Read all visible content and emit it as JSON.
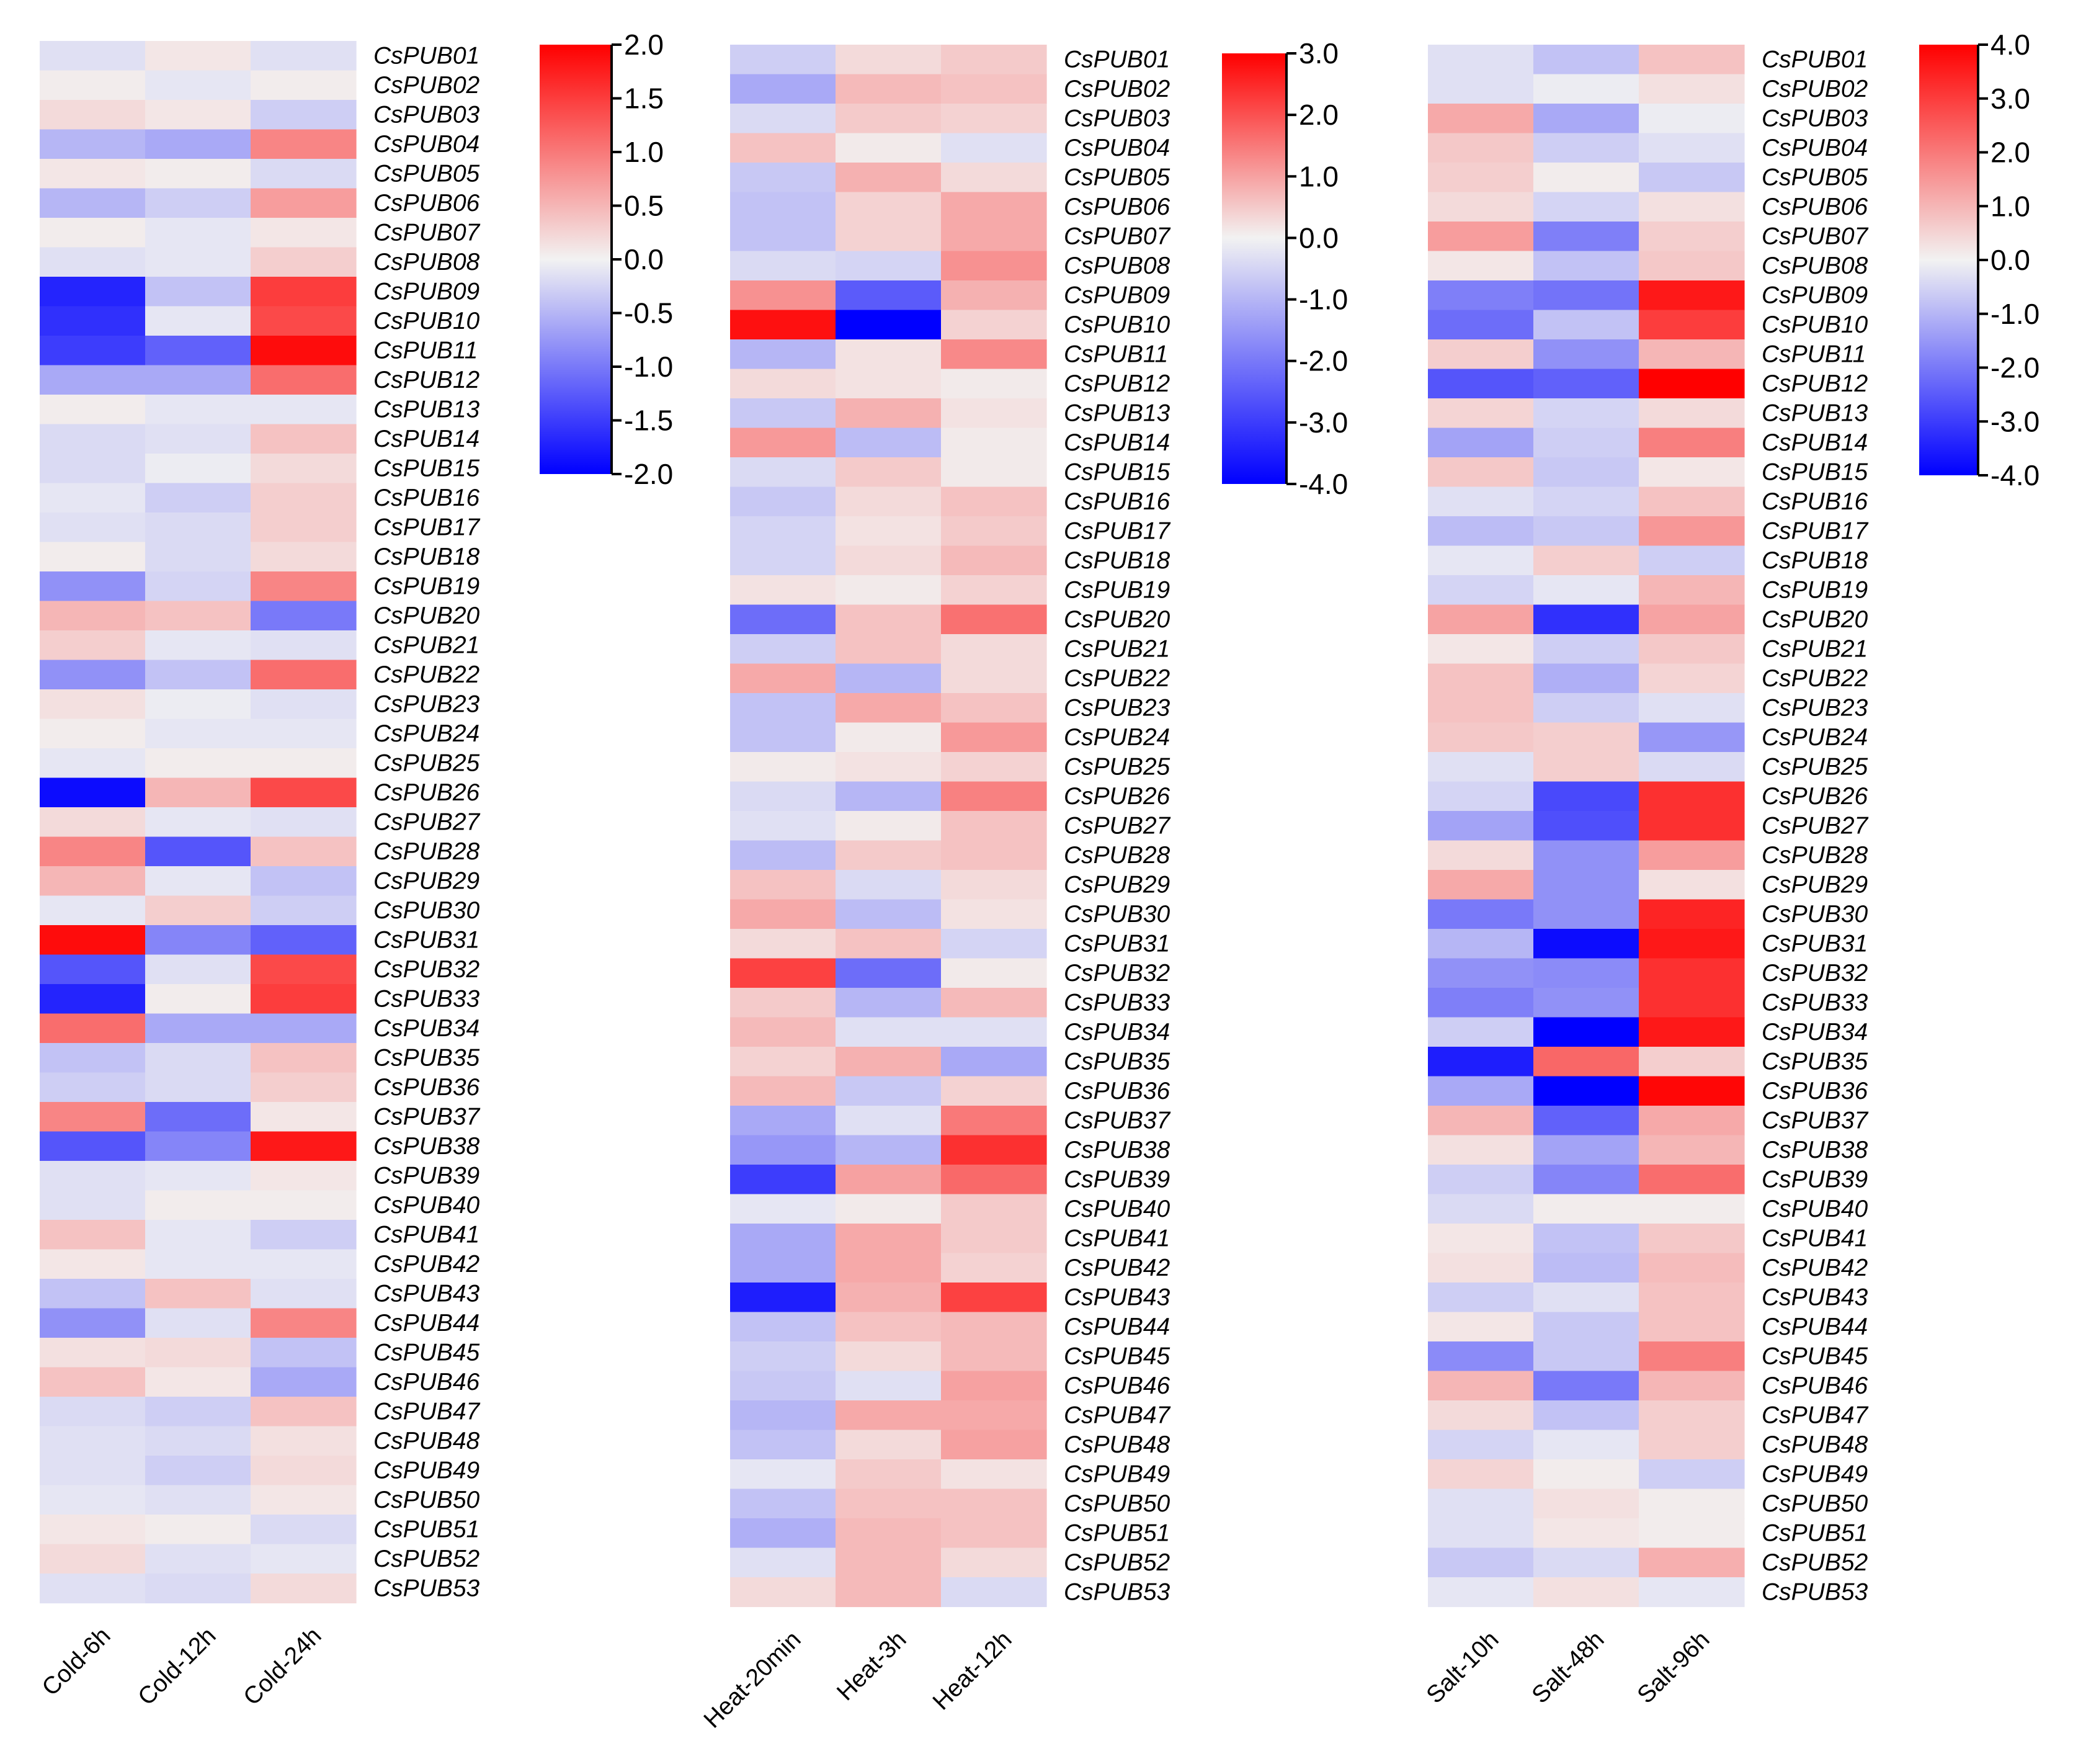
{
  "chart_data": [
    {
      "type": "heatmap",
      "title": "",
      "xlabel": "",
      "ylabel": "",
      "columns": [
        "Cold-6h",
        "Cold-12h",
        "Cold-24h"
      ],
      "rows": [
        "CsPUB01",
        "CsPUB02",
        "CsPUB03",
        "CsPUB04",
        "CsPUB05",
        "CsPUB06",
        "CsPUB07",
        "CsPUB08",
        "CsPUB09",
        "CsPUB10",
        "CsPUB11",
        "CsPUB12",
        "CsPUB13",
        "CsPUB14",
        "CsPUB15",
        "CsPUB16",
        "CsPUB17",
        "CsPUB18",
        "CsPUB19",
        "CsPUB20",
        "CsPUB21",
        "CsPUB22",
        "CsPUB23",
        "CsPUB24",
        "CsPUB25",
        "CsPUB26",
        "CsPUB27",
        "CsPUB28",
        "CsPUB29",
        "CsPUB30",
        "CsPUB31",
        "CsPUB32",
        "CsPUB33",
        "CsPUB34",
        "CsPUB35",
        "CsPUB36",
        "CsPUB37",
        "CsPUB38",
        "CsPUB39",
        "CsPUB40",
        "CsPUB41",
        "CsPUB42",
        "CsPUB43",
        "CsPUB44",
        "CsPUB45",
        "CsPUB46",
        "CsPUB47",
        "CsPUB48",
        "CsPUB49",
        "CsPUB50",
        "CsPUB51",
        "CsPUB52",
        "CsPUB53"
      ],
      "values": [
        [
          -0.15,
          0.1,
          -0.15
        ],
        [
          0.05,
          -0.1,
          0.05
        ],
        [
          0.2,
          0.1,
          -0.3
        ],
        [
          -0.5,
          -0.6,
          0.9
        ],
        [
          0.1,
          0.05,
          -0.2
        ],
        [
          -0.5,
          -0.3,
          0.7
        ],
        [
          0.05,
          -0.1,
          0.1
        ],
        [
          -0.15,
          -0.1,
          0.3
        ],
        [
          -1.7,
          -0.4,
          1.5
        ],
        [
          -1.6,
          -0.1,
          1.4
        ],
        [
          -1.5,
          -1.2,
          1.9
        ],
        [
          -0.6,
          -0.6,
          1.1
        ],
        [
          0.05,
          -0.1,
          -0.1
        ],
        [
          -0.2,
          -0.15,
          0.4
        ],
        [
          -0.2,
          -0.05,
          0.2
        ],
        [
          -0.1,
          -0.3,
          0.3
        ],
        [
          -0.15,
          -0.2,
          0.3
        ],
        [
          0.05,
          -0.2,
          0.2
        ],
        [
          -0.8,
          -0.25,
          0.9
        ],
        [
          0.5,
          0.4,
          -1.0
        ],
        [
          0.3,
          -0.1,
          -0.15
        ],
        [
          -0.8,
          -0.4,
          1.1
        ],
        [
          0.15,
          -0.05,
          -0.15
        ],
        [
          0.05,
          -0.1,
          -0.1
        ],
        [
          -0.1,
          0.05,
          0.05
        ],
        [
          -1.9,
          0.5,
          1.4
        ],
        [
          0.2,
          -0.1,
          -0.15
        ],
        [
          0.9,
          -1.3,
          0.4
        ],
        [
          0.5,
          -0.1,
          -0.4
        ],
        [
          -0.1,
          0.3,
          -0.3
        ],
        [
          1.9,
          -0.9,
          -1.2
        ],
        [
          -1.3,
          -0.15,
          1.4
        ],
        [
          -1.7,
          0.05,
          1.5
        ],
        [
          1.1,
          -0.6,
          -0.6
        ],
        [
          -0.4,
          -0.2,
          0.4
        ],
        [
          -0.3,
          -0.2,
          0.3
        ],
        [
          0.9,
          -1.1,
          0.1
        ],
        [
          -1.3,
          -0.9,
          1.8
        ],
        [
          -0.15,
          -0.1,
          0.1
        ],
        [
          -0.15,
          0.05,
          0.05
        ],
        [
          0.4,
          -0.1,
          -0.3
        ],
        [
          0.1,
          -0.1,
          -0.1
        ],
        [
          -0.4,
          0.4,
          -0.15
        ],
        [
          -0.8,
          -0.15,
          0.9
        ],
        [
          0.15,
          0.2,
          -0.4
        ],
        [
          0.4,
          0.1,
          -0.6
        ],
        [
          -0.2,
          -0.3,
          0.4
        ],
        [
          -0.15,
          -0.2,
          0.15
        ],
        [
          -0.15,
          -0.3,
          0.2
        ],
        [
          -0.1,
          -0.15,
          0.1
        ],
        [
          0.1,
          0.05,
          -0.2
        ],
        [
          0.2,
          -0.15,
          -0.1
        ],
        [
          -0.15,
          -0.2,
          0.2
        ]
      ],
      "colorbar": {
        "min": -2.0,
        "max": 2.0,
        "ticks": [
          "2.0",
          "1.5",
          "1.0",
          "0.5",
          "0.0",
          "-0.5",
          "-1.0",
          "-1.5",
          "-2.0"
        ]
      },
      "colors": {
        "low": "#0000ff",
        "mid": "#f2f2f2",
        "high": "#ff0000"
      }
    },
    {
      "type": "heatmap",
      "title": "",
      "xlabel": "",
      "ylabel": "",
      "columns": [
        "Heat-20min",
        "Heat-3h",
        "Heat-12h"
      ],
      "rows": [
        "CsPUB01",
        "CsPUB02",
        "CsPUB03",
        "CsPUB04",
        "CsPUB05",
        "CsPUB06",
        "CsPUB07",
        "CsPUB08",
        "CsPUB09",
        "CsPUB10",
        "CsPUB11",
        "CsPUB12",
        "CsPUB13",
        "CsPUB14",
        "CsPUB15",
        "CsPUB16",
        "CsPUB17",
        "CsPUB18",
        "CsPUB19",
        "CsPUB20",
        "CsPUB21",
        "CsPUB22",
        "CsPUB23",
        "CsPUB24",
        "CsPUB25",
        "CsPUB26",
        "CsPUB27",
        "CsPUB28",
        "CsPUB29",
        "CsPUB30",
        "CsPUB31",
        "CsPUB32",
        "CsPUB33",
        "CsPUB34",
        "CsPUB35",
        "CsPUB36",
        "CsPUB37",
        "CsPUB38",
        "CsPUB39",
        "CsPUB40",
        "CsPUB41",
        "CsPUB42",
        "CsPUB43",
        "CsPUB44",
        "CsPUB45",
        "CsPUB46",
        "CsPUB47",
        "CsPUB48",
        "CsPUB49",
        "CsPUB50",
        "CsPUB51",
        "CsPUB52",
        "CsPUB53"
      ],
      "values": [
        [
          -0.6,
          0.3,
          0.5
        ],
        [
          -1.2,
          0.7,
          0.6
        ],
        [
          -0.4,
          0.5,
          0.4
        ],
        [
          0.6,
          0.1,
          -0.3
        ],
        [
          -0.7,
          0.8,
          0.3
        ],
        [
          -0.8,
          0.4,
          0.9
        ],
        [
          -0.8,
          0.4,
          0.9
        ],
        [
          -0.4,
          -0.5,
          1.2
        ],
        [
          1.2,
          -2.5,
          0.8
        ],
        [
          2.8,
          -4.0,
          0.4
        ],
        [
          -1.0,
          0.2,
          1.3
        ],
        [
          0.3,
          0.2,
          0.1
        ],
        [
          -0.7,
          0.8,
          0.2
        ],
        [
          1.1,
          -0.9,
          0.1
        ],
        [
          -0.4,
          0.5,
          0.1
        ],
        [
          -0.7,
          0.3,
          0.6
        ],
        [
          -0.5,
          0.2,
          0.5
        ],
        [
          -0.5,
          0.3,
          0.7
        ],
        [
          0.2,
          0.1,
          0.4
        ],
        [
          -2.2,
          0.6,
          1.6
        ],
        [
          -0.6,
          0.6,
          0.3
        ],
        [
          0.9,
          -1.0,
          0.3
        ],
        [
          -0.8,
          0.9,
          0.6
        ],
        [
          -0.8,
          0.1,
          1.1
        ],
        [
          0.1,
          0.2,
          0.4
        ],
        [
          -0.4,
          -1.0,
          1.4
        ],
        [
          -0.3,
          0.1,
          0.6
        ],
        [
          -0.9,
          0.5,
          0.6
        ],
        [
          0.6,
          -0.4,
          0.3
        ],
        [
          0.9,
          -0.9,
          0.2
        ],
        [
          0.3,
          0.6,
          -0.5
        ],
        [
          2.2,
          -2.2,
          0.1
        ],
        [
          0.5,
          -1.0,
          0.7
        ],
        [
          0.7,
          -0.3,
          -0.3
        ],
        [
          0.4,
          0.8,
          -1.2
        ],
        [
          0.7,
          -0.7,
          0.4
        ],
        [
          -1.2,
          -0.3,
          1.5
        ],
        [
          -1.5,
          -1.0,
          2.4
        ],
        [
          -3.0,
          1.0,
          1.7
        ],
        [
          -0.2,
          0.1,
          0.5
        ],
        [
          -1.2,
          0.9,
          0.5
        ],
        [
          -1.2,
          0.9,
          0.4
        ],
        [
          -3.5,
          0.8,
          2.2
        ],
        [
          -0.8,
          0.6,
          0.7
        ],
        [
          -0.6,
          0.3,
          0.7
        ],
        [
          -0.7,
          -0.3,
          1.0
        ],
        [
          -1.0,
          0.9,
          0.9
        ],
        [
          -0.8,
          0.3,
          1.0
        ],
        [
          -0.2,
          0.5,
          0.2
        ],
        [
          -0.8,
          0.6,
          0.6
        ],
        [
          -1.1,
          0.7,
          0.6
        ],
        [
          -0.3,
          0.7,
          0.3
        ],
        [
          0.3,
          0.7,
          -0.4
        ]
      ],
      "colorbar": {
        "min": -4.0,
        "max": 3.0,
        "ticks": [
          "3.0",
          "2.0",
          "1.0",
          "0.0",
          "-1.0",
          "-2.0",
          "-3.0",
          "-4.0"
        ]
      },
      "colors": {
        "low": "#0000ff",
        "mid": "#f2f2f2",
        "high": "#ff0000"
      }
    },
    {
      "type": "heatmap",
      "title": "",
      "xlabel": "",
      "ylabel": "",
      "columns": [
        "Salt-10h",
        "Salt-48h",
        "Salt-96h"
      ],
      "rows": [
        "CsPUB01",
        "CsPUB02",
        "CsPUB03",
        "CsPUB04",
        "CsPUB05",
        "CsPUB06",
        "CsPUB07",
        "CsPUB08",
        "CsPUB09",
        "CsPUB10",
        "CsPUB11",
        "CsPUB12",
        "CsPUB13",
        "CsPUB14",
        "CsPUB15",
        "CsPUB16",
        "CsPUB17",
        "CsPUB18",
        "CsPUB19",
        "CsPUB20",
        "CsPUB21",
        "CsPUB22",
        "CsPUB23",
        "CsPUB24",
        "CsPUB25",
        "CsPUB26",
        "CsPUB27",
        "CsPUB28",
        "CsPUB29",
        "CsPUB30",
        "CsPUB31",
        "CsPUB32",
        "CsPUB33",
        "CsPUB34",
        "CsPUB35",
        "CsPUB36",
        "CsPUB37",
        "CsPUB38",
        "CsPUB39",
        "CsPUB40",
        "CsPUB41",
        "CsPUB42",
        "CsPUB43",
        "CsPUB44",
        "CsPUB45",
        "CsPUB46",
        "CsPUB47",
        "CsPUB48",
        "CsPUB49",
        "CsPUB50",
        "CsPUB51",
        "CsPUB52",
        "CsPUB53"
      ],
      "values": [
        [
          -0.3,
          -0.8,
          0.8
        ],
        [
          -0.3,
          -0.1,
          0.3
        ],
        [
          1.2,
          -1.2,
          -0.1
        ],
        [
          0.7,
          -0.6,
          -0.3
        ],
        [
          0.6,
          0.1,
          -0.7
        ],
        [
          0.4,
          -0.5,
          0.3
        ],
        [
          1.4,
          -1.9,
          0.6
        ],
        [
          0.2,
          -0.8,
          0.7
        ],
        [
          -1.9,
          -2.1,
          3.6
        ],
        [
          -2.2,
          -0.8,
          3.0
        ],
        [
          0.6,
          -1.6,
          1.0
        ],
        [
          -2.6,
          -2.4,
          4.0
        ],
        [
          0.5,
          -0.5,
          0.4
        ],
        [
          -1.3,
          -0.6,
          1.9
        ],
        [
          0.7,
          -0.7,
          0.2
        ],
        [
          -0.3,
          -0.5,
          0.8
        ],
        [
          -0.9,
          -0.7,
          1.5
        ],
        [
          -0.2,
          0.6,
          -0.6
        ],
        [
          -0.5,
          -0.2,
          1.0
        ],
        [
          1.3,
          -3.2,
          1.3
        ],
        [
          0.2,
          -0.6,
          0.7
        ],
        [
          0.8,
          -1.1,
          0.5
        ],
        [
          0.8,
          -0.6,
          -0.3
        ],
        [
          0.7,
          0.6,
          -1.5
        ],
        [
          -0.3,
          0.6,
          -0.4
        ],
        [
          -0.5,
          -2.8,
          3.2
        ],
        [
          -1.3,
          -2.7,
          3.2
        ],
        [
          0.4,
          -1.6,
          1.4
        ],
        [
          1.2,
          -1.6,
          0.3
        ],
        [
          -2.0,
          -1.6,
          3.4
        ],
        [
          -1.0,
          -3.8,
          3.6
        ],
        [
          -1.6,
          -1.7,
          3.2
        ],
        [
          -1.9,
          -1.6,
          3.2
        ],
        [
          -0.6,
          -4.0,
          3.6
        ],
        [
          -3.5,
          2.3,
          0.6
        ],
        [
          -1.2,
          -4.0,
          3.9
        ],
        [
          1.0,
          -2.4,
          1.2
        ],
        [
          0.3,
          -1.3,
          1.0
        ],
        [
          -0.6,
          -1.8,
          2.2
        ],
        [
          -0.4,
          0.1,
          0.1
        ],
        [
          0.2,
          -0.8,
          0.7
        ],
        [
          0.3,
          -0.9,
          0.9
        ],
        [
          -0.6,
          -0.3,
          0.8
        ],
        [
          0.2,
          -0.7,
          0.8
        ],
        [
          -1.7,
          -0.7,
          1.9
        ],
        [
          1.0,
          -2.0,
          1.0
        ],
        [
          0.4,
          -0.8,
          0.6
        ],
        [
          -0.5,
          -0.2,
          0.6
        ],
        [
          0.5,
          0.1,
          -0.6
        ],
        [
          -0.3,
          0.3,
          0.1
        ],
        [
          -0.3,
          0.2,
          0.1
        ],
        [
          -0.7,
          -0.4,
          1.1
        ],
        [
          -0.2,
          0.3,
          -0.2
        ]
      ],
      "colorbar": {
        "min": -4.0,
        "max": 4.0,
        "ticks": [
          "4.0",
          "3.0",
          "2.0",
          "1.0",
          "0.0",
          "-1.0",
          "-2.0",
          "-3.0",
          "-4.0"
        ]
      },
      "colors": {
        "low": "#0000ff",
        "mid": "#f2f2f2",
        "high": "#ff0000"
      }
    }
  ]
}
